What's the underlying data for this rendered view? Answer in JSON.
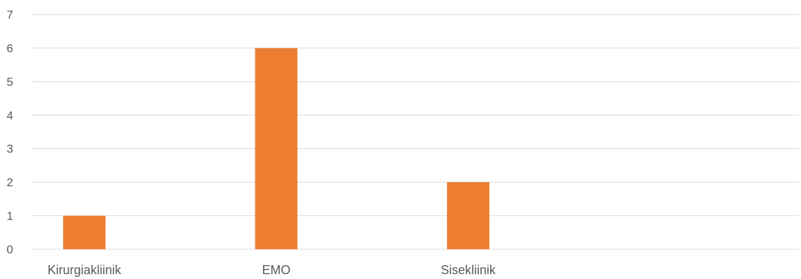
{
  "chart_data": {
    "type": "bar",
    "categories": [
      "Kirurgiakliinik",
      "EMO",
      "Sisekliinik",
      ""
    ],
    "series": [
      {
        "values": [
          1,
          6,
          2,
          0
        ],
        "color": "#ED7D31"
      }
    ],
    "ylim": [
      0,
      7
    ],
    "yticks": [
      0,
      1,
      2,
      3,
      4,
      5,
      6,
      7
    ],
    "grid": true,
    "legend": "none"
  }
}
